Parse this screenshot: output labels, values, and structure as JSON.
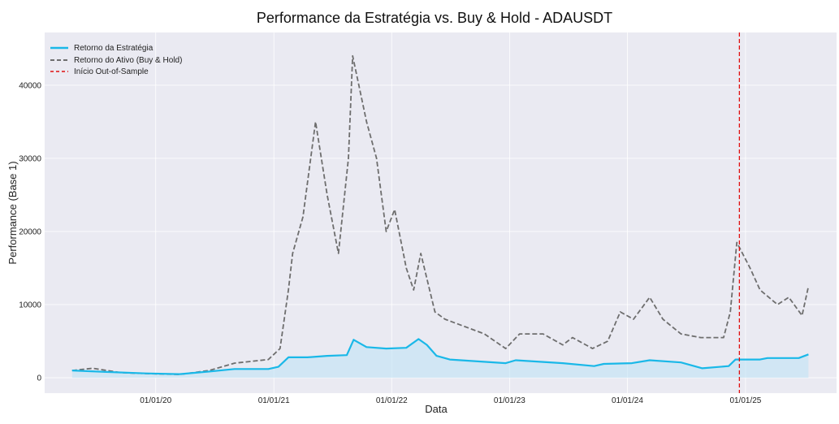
{
  "chart_data": {
    "type": "line",
    "title": "Performance da Estratégia vs. Buy & Hold - ADAUSDT",
    "xlabel": "Data",
    "ylabel": "Performance (Base 1)",
    "ylim": [
      -2100,
      47200
    ],
    "xlim": [
      "2019-01-22",
      "2025-10-10"
    ],
    "yticks": [
      0,
      10000,
      20000,
      30000,
      40000
    ],
    "xticks": [
      {
        "date": "2020-01-01",
        "label": "01/01/20"
      },
      {
        "date": "2021-01-01",
        "label": "01/01/21"
      },
      {
        "date": "2022-01-01",
        "label": "01/01/22"
      },
      {
        "date": "2023-01-01",
        "label": "01/01/23"
      },
      {
        "date": "2024-01-01",
        "label": "01/01/24"
      },
      {
        "date": "2025-01-01",
        "label": "01/01/25"
      }
    ],
    "grid": true,
    "legend_position": "top-left",
    "background": "#eaeaf2",
    "series": [
      {
        "name": "Retorno da Estratégia",
        "color": "#1ab8e8",
        "style": "solid",
        "fill_below": true,
        "points": [
          [
            "2019-04-17",
            1000
          ],
          [
            "2019-08-01",
            800
          ],
          [
            "2019-12-01",
            600
          ],
          [
            "2020-03-15",
            500
          ],
          [
            "2020-06-01",
            800
          ],
          [
            "2020-09-01",
            1200
          ],
          [
            "2020-12-15",
            1200
          ],
          [
            "2021-01-15",
            1500
          ],
          [
            "2021-02-15",
            2800
          ],
          [
            "2021-04-15",
            2800
          ],
          [
            "2021-06-15",
            3000
          ],
          [
            "2021-08-15",
            3100
          ],
          [
            "2021-09-05",
            5200
          ],
          [
            "2021-10-15",
            4200
          ],
          [
            "2021-12-15",
            4000
          ],
          [
            "2022-02-15",
            4100
          ],
          [
            "2022-03-25",
            5300
          ],
          [
            "2022-04-20",
            4500
          ],
          [
            "2022-05-20",
            3000
          ],
          [
            "2022-06-30",
            2500
          ],
          [
            "2022-12-20",
            2000
          ],
          [
            "2023-01-20",
            2400
          ],
          [
            "2023-06-15",
            2000
          ],
          [
            "2023-09-20",
            1600
          ],
          [
            "2023-10-20",
            1900
          ],
          [
            "2024-01-15",
            2000
          ],
          [
            "2024-03-10",
            2400
          ],
          [
            "2024-06-15",
            2100
          ],
          [
            "2024-08-20",
            1300
          ],
          [
            "2024-11-10",
            1600
          ],
          [
            "2024-12-01",
            2500
          ],
          [
            "2025-02-15",
            2500
          ],
          [
            "2025-03-10",
            2700
          ],
          [
            "2025-06-15",
            2700
          ],
          [
            "2025-07-15",
            3200
          ]
        ]
      },
      {
        "name": "Retorno do Ativo (Buy & Hold)",
        "color": "#6e6e6e",
        "style": "dashed",
        "points": [
          [
            "2019-04-17",
            1000
          ],
          [
            "2019-06-20",
            1300
          ],
          [
            "2019-09-15",
            700
          ],
          [
            "2019-12-15",
            550
          ],
          [
            "2020-03-15",
            450
          ],
          [
            "2020-06-15",
            1000
          ],
          [
            "2020-09-01",
            2000
          ],
          [
            "2020-12-15",
            2500
          ],
          [
            "2021-01-20",
            4000
          ],
          [
            "2021-02-15",
            12000
          ],
          [
            "2021-02-28",
            17000
          ],
          [
            "2021-04-01",
            22000
          ],
          [
            "2021-05-10",
            35000
          ],
          [
            "2021-06-15",
            25000
          ],
          [
            "2021-07-20",
            17000
          ],
          [
            "2021-08-20",
            30000
          ],
          [
            "2021-09-02",
            44000
          ],
          [
            "2021-10-15",
            35000
          ],
          [
            "2021-11-15",
            30000
          ],
          [
            "2021-12-15",
            20000
          ],
          [
            "2022-01-10",
            23000
          ],
          [
            "2022-02-15",
            15000
          ],
          [
            "2022-03-10",
            12000
          ],
          [
            "2022-04-01",
            17000
          ],
          [
            "2022-05-15",
            9000
          ],
          [
            "2022-06-15",
            8000
          ],
          [
            "2022-08-15",
            7000
          ],
          [
            "2022-10-15",
            6000
          ],
          [
            "2022-12-20",
            4000
          ],
          [
            "2023-02-01",
            6000
          ],
          [
            "2023-04-15",
            6000
          ],
          [
            "2023-06-15",
            4500
          ],
          [
            "2023-07-15",
            5500
          ],
          [
            "2023-09-15",
            4000
          ],
          [
            "2023-11-01",
            5000
          ],
          [
            "2023-12-10",
            9000
          ],
          [
            "2024-01-20",
            8000
          ],
          [
            "2024-03-10",
            11000
          ],
          [
            "2024-04-20",
            8000
          ],
          [
            "2024-06-15",
            6000
          ],
          [
            "2024-08-15",
            5500
          ],
          [
            "2024-10-25",
            5500
          ],
          [
            "2024-11-15",
            9000
          ],
          [
            "2024-12-05",
            18500
          ],
          [
            "2025-01-15",
            15000
          ],
          [
            "2025-02-15",
            12000
          ],
          [
            "2025-04-10",
            10000
          ],
          [
            "2025-05-15",
            11000
          ],
          [
            "2025-06-25",
            8500
          ],
          [
            "2025-07-15",
            12500
          ]
        ]
      }
    ],
    "vline": {
      "name": "Início Out-of-Sample",
      "date": "2024-12-13",
      "color": "#e01010",
      "style": "dashed"
    }
  }
}
